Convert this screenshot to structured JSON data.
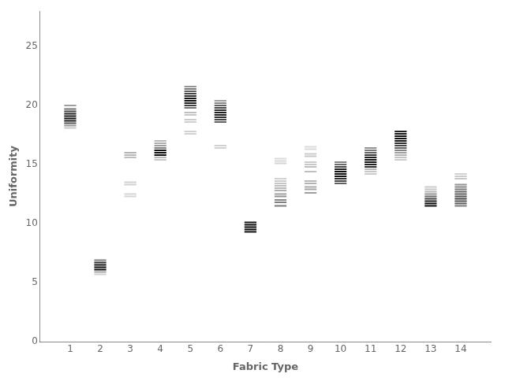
{
  "chart_data": {
    "type": "strip",
    "x_label": "Fabric Type",
    "y_label": "Uniformity",
    "xlim": [
      0,
      15
    ],
    "ylim": [
      0,
      28
    ],
    "xticks": [
      1,
      2,
      3,
      4,
      5,
      6,
      7,
      8,
      9,
      10,
      11,
      12,
      13,
      14
    ],
    "yticks": [
      0,
      5,
      10,
      15,
      20,
      25
    ],
    "grid": false,
    "groups": [
      {
        "x": 1,
        "values": [
          20.0,
          19.7,
          19.5,
          19.3,
          19.1,
          18.9,
          18.7,
          18.5,
          18.3,
          18.1
        ],
        "shades": [
          0.62,
          0.45,
          0.28,
          0.15,
          0.1,
          0.08,
          0.1,
          0.35,
          0.6,
          0.78
        ]
      },
      {
        "x": 2,
        "values": [
          6.9,
          6.7,
          6.5,
          6.3,
          6.1,
          5.9,
          5.7
        ],
        "shades": [
          0.5,
          0.2,
          0.08,
          0.05,
          0.05,
          0.65,
          0.82
        ]
      },
      {
        "x": 3,
        "values": [
          16.0,
          15.8,
          15.6,
          13.5,
          13.3,
          12.5,
          12.3
        ],
        "shades": [
          0.7,
          0.72,
          0.74,
          0.82,
          0.82,
          0.84,
          0.84
        ]
      },
      {
        "x": 4,
        "values": [
          17.0,
          16.8,
          16.6,
          16.4,
          16.2,
          16.0,
          15.8,
          15.6,
          15.4
        ],
        "shades": [
          0.72,
          0.68,
          0.62,
          0.5,
          0.08,
          0.06,
          0.04,
          0.72,
          0.78
        ]
      },
      {
        "x": 5,
        "values": [
          21.6,
          21.4,
          21.2,
          21.0,
          20.8,
          20.6,
          20.4,
          20.2,
          20.0,
          19.8,
          19.4,
          19.2,
          18.8,
          18.6,
          17.8,
          17.6
        ],
        "shades": [
          0.58,
          0.48,
          0.38,
          0.28,
          0.18,
          0.08,
          0.06,
          0.12,
          0.25,
          0.45,
          0.75,
          0.78,
          0.8,
          0.81,
          0.82,
          0.82
        ]
      },
      {
        "x": 6,
        "values": [
          20.4,
          20.2,
          20.0,
          19.8,
          19.6,
          19.4,
          19.2,
          19.0,
          18.8,
          18.6,
          16.6,
          16.4
        ],
        "shades": [
          0.62,
          0.52,
          0.38,
          0.28,
          0.18,
          0.12,
          0.12,
          0.18,
          0.28,
          0.38,
          0.82,
          0.82
        ]
      },
      {
        "x": 7,
        "values": [
          10.1,
          9.9,
          9.7,
          9.5,
          9.3
        ],
        "shades": [
          0.1,
          0.05,
          0.03,
          0.03,
          0.05
        ]
      },
      {
        "x": 8,
        "values": [
          15.5,
          15.3,
          15.1,
          13.8,
          13.6,
          13.4,
          13.2,
          13.0,
          12.8,
          12.5,
          12.3,
          12.0,
          11.8,
          11.5
        ],
        "shades": [
          0.86,
          0.85,
          0.83,
          0.82,
          0.8,
          0.78,
          0.75,
          0.72,
          0.68,
          0.63,
          0.58,
          0.53,
          0.5,
          0.48
        ]
      },
      {
        "x": 9,
        "values": [
          16.5,
          16.3,
          15.9,
          15.7,
          15.2,
          15.0,
          14.8,
          14.4,
          13.6,
          13.4,
          13.1,
          12.9,
          12.6
        ],
        "shades": [
          0.86,
          0.85,
          0.8,
          0.78,
          0.8,
          0.78,
          0.75,
          0.75,
          0.72,
          0.7,
          0.67,
          0.65,
          0.62
        ]
      },
      {
        "x": 10,
        "values": [
          15.2,
          15.0,
          14.8,
          14.6,
          14.4,
          14.2,
          14.0,
          13.8,
          13.6,
          13.4
        ],
        "shades": [
          0.52,
          0.42,
          0.28,
          0.12,
          0.06,
          0.06,
          0.08,
          0.18,
          0.28,
          0.38
        ]
      },
      {
        "x": 11,
        "values": [
          16.4,
          16.2,
          16.0,
          15.8,
          15.6,
          15.4,
          15.2,
          15.0,
          14.8,
          14.6,
          14.4,
          14.2
        ],
        "shades": [
          0.58,
          0.48,
          0.38,
          0.22,
          0.12,
          0.08,
          0.08,
          0.12,
          0.18,
          0.72,
          0.78,
          0.8
        ]
      },
      {
        "x": 12,
        "values": [
          17.8,
          17.6,
          17.4,
          17.2,
          17.0,
          16.8,
          16.6,
          16.4,
          16.2,
          16.0,
          15.8,
          15.6,
          15.4
        ],
        "shades": [
          0.12,
          0.08,
          0.06,
          0.06,
          0.08,
          0.18,
          0.28,
          0.38,
          0.52,
          0.62,
          0.7,
          0.76,
          0.8
        ]
      },
      {
        "x": 13,
        "values": [
          13.1,
          12.9,
          12.7,
          12.5,
          12.3,
          12.1,
          11.9,
          11.7,
          11.5
        ],
        "shades": [
          0.8,
          0.78,
          0.72,
          0.58,
          0.42,
          0.28,
          0.12,
          0.06,
          0.04
        ]
      },
      {
        "x": 14,
        "values": [
          14.2,
          14.0,
          13.8,
          13.3,
          13.1,
          12.9,
          12.7,
          12.5,
          12.3,
          12.1,
          11.9,
          11.7,
          11.5
        ],
        "shades": [
          0.82,
          0.8,
          0.78,
          0.58,
          0.52,
          0.48,
          0.42,
          0.38,
          0.33,
          0.28,
          0.33,
          0.38,
          0.48
        ]
      }
    ]
  }
}
